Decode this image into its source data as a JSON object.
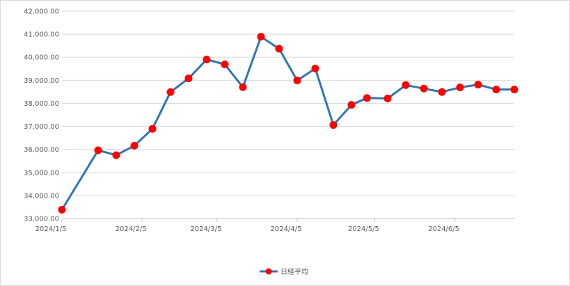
{
  "chart_data": {
    "type": "line",
    "title": "",
    "xlabel": "",
    "ylabel": "",
    "ylim": [
      33000,
      42000
    ],
    "yticks": [
      33000,
      34000,
      35000,
      36000,
      37000,
      38000,
      39000,
      40000,
      41000,
      42000
    ],
    "ytick_labels": [
      "33,000.00",
      "34,000.00",
      "35,000.00",
      "36,000.00",
      "37,000.00",
      "38,000.00",
      "39,000.00",
      "40,000.00",
      "41,000.00",
      "42,000.00"
    ],
    "xlim": [
      "2024-01-05",
      "2024-06-28"
    ],
    "xticks": [
      "2024-01-05",
      "2024-02-05",
      "2024-03-05",
      "2024-04-05",
      "2024-05-05",
      "2024-06-05"
    ],
    "xtick_labels": [
      "2024/1/5",
      "2024/2/5",
      "2024/3/5",
      "2024/4/5",
      "2024/5/5",
      "2024/6/5"
    ],
    "grid": "horizontal",
    "legend": "bottom",
    "series": [
      {
        "name": "日経平均",
        "color": "#2E75B6",
        "marker_color": "#FF0000",
        "x": [
          "2024-01-05",
          "2024-01-19",
          "2024-01-26",
          "2024-02-02",
          "2024-02-09",
          "2024-02-16",
          "2024-02-23",
          "2024-03-01",
          "2024-03-08",
          "2024-03-15",
          "2024-03-22",
          "2024-03-29",
          "2024-04-05",
          "2024-04-12",
          "2024-04-19",
          "2024-04-26",
          "2024-05-02",
          "2024-05-10",
          "2024-05-17",
          "2024-05-24",
          "2024-05-31",
          "2024-06-07",
          "2024-06-14",
          "2024-06-21",
          "2024-06-28"
        ],
        "values": [
          33380,
          35960,
          35750,
          36160,
          36890,
          38490,
          39080,
          39900,
          39690,
          38700,
          40890,
          40370,
          38990,
          39510,
          37060,
          37930,
          38230,
          38210,
          38790,
          38640,
          38490,
          38690,
          38810,
          38600,
          38600
        ]
      }
    ]
  }
}
